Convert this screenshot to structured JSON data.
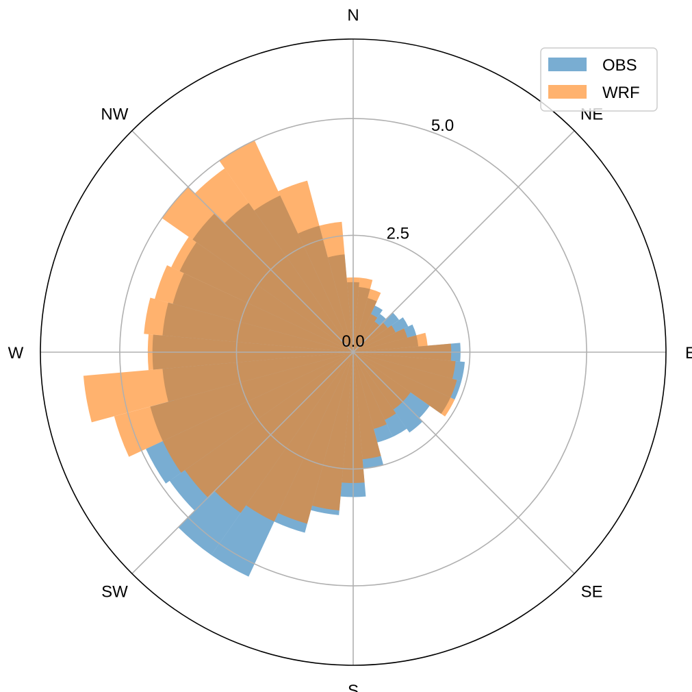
{
  "chart_data": {
    "type": "bar",
    "subtype": "polar-windrose",
    "directions": [
      "N",
      "NE",
      "E",
      "SE",
      "S",
      "SW",
      "W",
      "NW"
    ],
    "radial_ticks": [
      "0.0",
      "2.5",
      "5.0"
    ],
    "radial_tick_values": [
      0,
      2.5,
      5.0
    ],
    "radial_grid": [
      2.5,
      5.0
    ],
    "rlim": [
      0,
      6.7
    ],
    "grid": true,
    "legend_position": "top-right",
    "sector_width_deg": 10,
    "x_unit": "degrees from north, clockwise",
    "x": [
      0,
      10,
      20,
      30,
      40,
      50,
      60,
      70,
      80,
      90,
      100,
      110,
      120,
      130,
      140,
      150,
      160,
      170,
      180,
      190,
      200,
      210,
      220,
      230,
      240,
      250,
      260,
      270,
      280,
      290,
      300,
      310,
      320,
      330,
      340,
      350
    ],
    "series": [
      {
        "name": "OBS",
        "color": "#1f77b4",
        "alpha": 0.6,
        "values": [
          1.5,
          1.4,
          1.2,
          1.1,
          1.0,
          1.2,
          1.3,
          1.4,
          1.4,
          2.3,
          2.4,
          2.4,
          2.3,
          2.0,
          2.1,
          2.0,
          2.0,
          2.5,
          3.1,
          3.5,
          4.0,
          5.3,
          5.3,
          4.8,
          4.9,
          4.5,
          4.1,
          4.3,
          4.1,
          4.0,
          4.1,
          4.2,
          3.9,
          3.7,
          2.8,
          2.1
        ]
      },
      {
        "name": "WRF",
        "color": "#ff7f0e",
        "alpha": 0.6,
        "values": [
          1.6,
          1.6,
          1.4,
          0.9,
          0.8,
          0.9,
          1.0,
          1.2,
          1.6,
          2.1,
          2.2,
          2.3,
          2.4,
          1.5,
          1.5,
          1.6,
          1.7,
          2.3,
          2.8,
          3.4,
          3.8,
          4.0,
          4.2,
          4.4,
          4.5,
          5.3,
          5.8,
          4.4,
          4.5,
          4.4,
          4.3,
          5.0,
          4.8,
          5.0,
          3.8,
          2.8
        ]
      }
    ]
  }
}
